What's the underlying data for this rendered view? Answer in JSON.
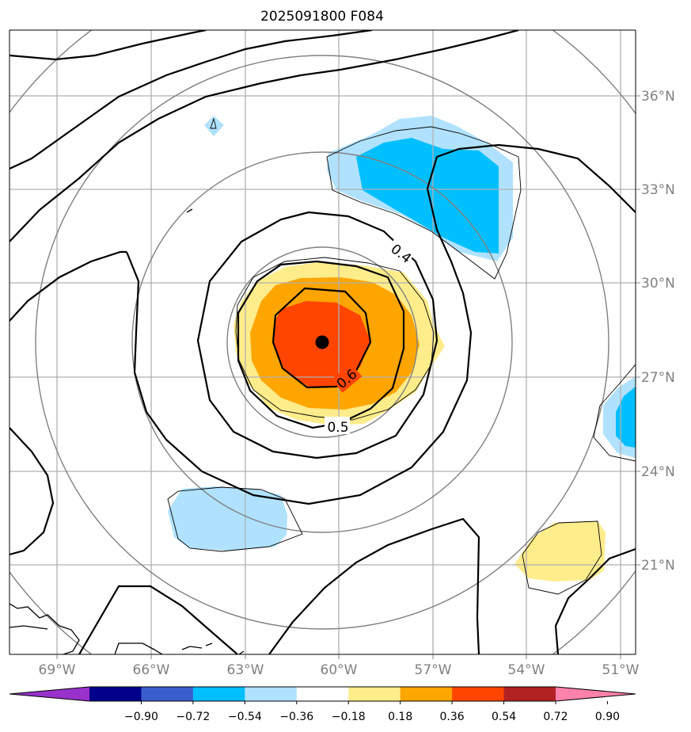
{
  "title": "2025091800 F084",
  "map": {
    "lon_labels": [
      "69°W",
      "66°W",
      "63°W",
      "60°W",
      "57°W",
      "54°W",
      "51°W"
    ],
    "lat_labels": [
      "36°N",
      "33°N",
      "30°N",
      "27°N",
      "24°N",
      "21°N"
    ],
    "grid": true,
    "center_marker": {
      "lon": "60.5°W",
      "lat": "28.1°N"
    },
    "contour_labels": [
      "0.4",
      "0.5",
      "0.6"
    ]
  },
  "colorbar": {
    "tick_labels": [
      "−0.90",
      "−0.72",
      "−0.54",
      "−0.36",
      "−0.18",
      "0.18",
      "0.36",
      "0.54",
      "0.72",
      "0.90"
    ],
    "colors": [
      "#9932cc",
      "#00008b",
      "#3a5fcd",
      "#00bfff",
      "#b0e2ff",
      "#ffffff",
      "#ffec8b",
      "#ffa500",
      "#ff4500",
      "#b22222",
      "#ff82ab"
    ],
    "extend": "both"
  },
  "fill_colors": {
    "light_blue": "#b0e2ff",
    "blue": "#00bfff",
    "yellow": "#ffec8b",
    "orange": "#ffa500",
    "red_orange": "#ff4500"
  }
}
